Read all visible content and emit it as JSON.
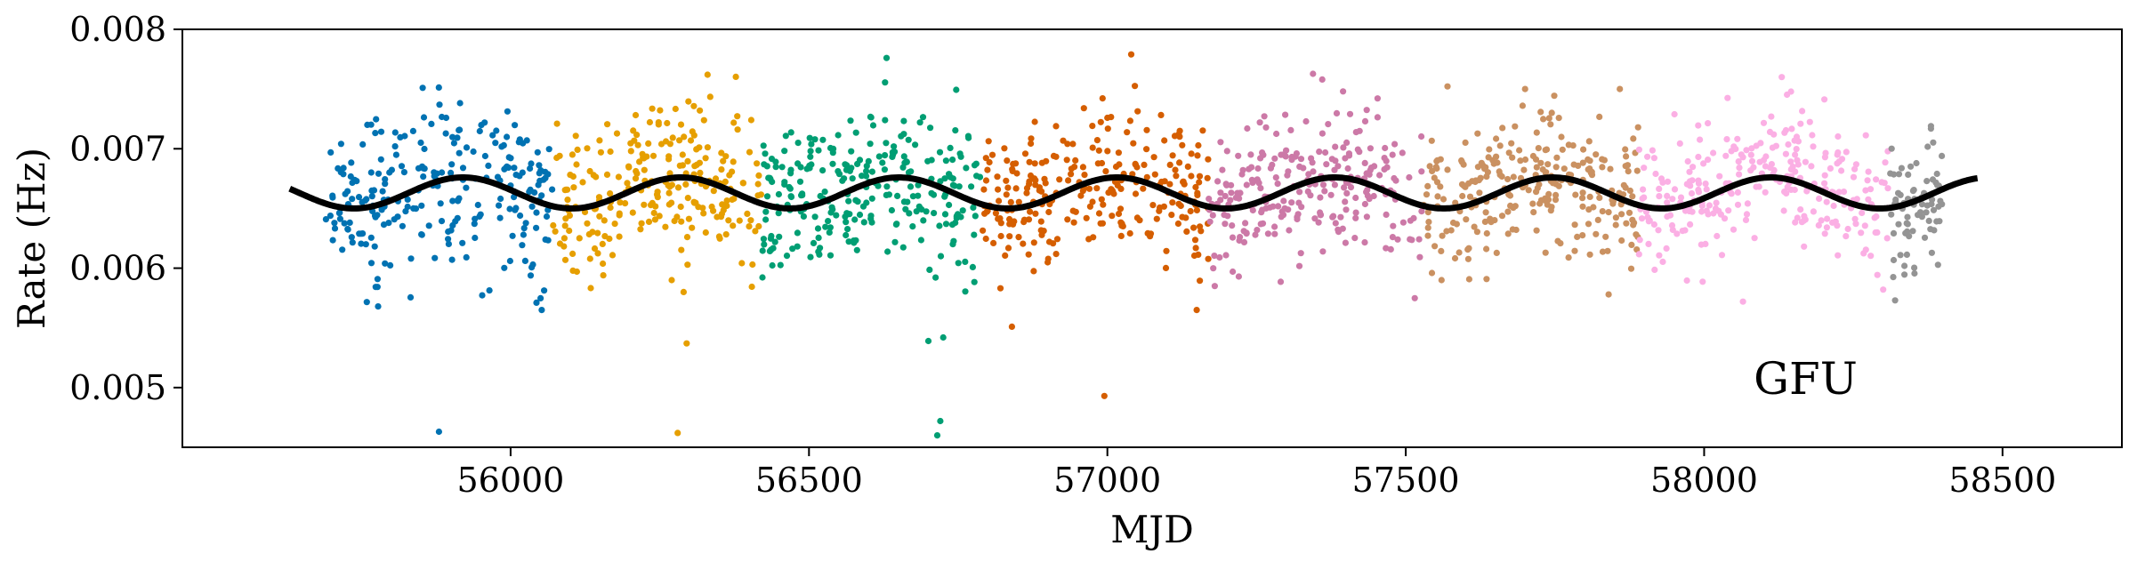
{
  "chart_data": {
    "type": "scatter",
    "xlabel": "MJD",
    "ylabel": "Rate (Hz)",
    "annotation": "GFU",
    "xlim": [
      55450,
      58700
    ],
    "ylim": [
      0.0045,
      0.008
    ],
    "xticks": [
      56000,
      56500,
      57000,
      57500,
      58000,
      58500
    ],
    "xtick_labels": [
      "56000",
      "56500",
      "57000",
      "57500",
      "58000",
      "58500"
    ],
    "yticks": [
      0.005,
      0.006,
      0.007,
      0.008
    ],
    "ytick_labels": [
      "0.005",
      "0.006",
      "0.007",
      "0.008"
    ],
    "grid": false,
    "legend": "none",
    "series": [
      {
        "color": "#0072b2",
        "x_range": [
          55690,
          56070
        ],
        "y_mean": 0.00663,
        "y_std": 0.00033,
        "n": 250,
        "x": [
          55880,
          56020,
          55760
        ],
        "y": [
          0.00463,
          0.0068,
          0.0072
        ]
      },
      {
        "color": "#e69f00",
        "x_range": [
          56070,
          56420
        ],
        "y_mean": 0.00665,
        "y_std": 0.0003,
        "n": 240,
        "x": [
          56280,
          56290,
          56295,
          56270,
          56330
        ],
        "y": [
          0.00462,
          0.0058,
          0.00537,
          0.0059,
          0.00762
        ]
      },
      {
        "color": "#009e73",
        "x_range": [
          56420,
          56790
        ],
        "y_mean": 0.00662,
        "y_std": 0.00033,
        "n": 260,
        "x": [
          56715,
          56720,
          56700,
          56725,
          56630
        ],
        "y": [
          0.0046,
          0.00472,
          0.00539,
          0.00542,
          0.00776
        ]
      },
      {
        "color": "#d55e00",
        "x_range": [
          56790,
          57170
        ],
        "y_mean": 0.00665,
        "y_std": 0.0003,
        "n": 260,
        "x": [
          56995,
          56840,
          57040
        ],
        "y": [
          0.00493,
          0.00551,
          0.00779
        ]
      },
      {
        "color": "#cc79a7",
        "x_range": [
          57170,
          57530
        ],
        "y_mean": 0.00668,
        "y_std": 0.0003,
        "n": 250,
        "x": [
          57180,
          57360,
          57395
        ],
        "y": [
          0.00585,
          0.00758,
          0.00748
        ]
      },
      {
        "color": "#ca9161",
        "x_range": [
          57530,
          57890
        ],
        "y_mean": 0.00666,
        "y_std": 0.0003,
        "n": 260,
        "x": [
          57700,
          57840,
          57560
        ],
        "y": [
          0.0075,
          0.00578,
          0.0059
        ]
      },
      {
        "color": "#fbafe4",
        "x_range": [
          57890,
          58310
        ],
        "y_mean": 0.00668,
        "y_std": 0.0003,
        "n": 270,
        "x": [
          58130,
          58065,
          58300
        ],
        "y": [
          0.0076,
          0.00572,
          0.00582
        ]
      },
      {
        "color": "#949494",
        "x_range": [
          58310,
          58400
        ],
        "y_mean": 0.00655,
        "y_std": 0.0003,
        "n": 70,
        "x": [
          58320,
          58380
        ],
        "y": [
          0.00573,
          0.00719
        ]
      }
    ],
    "model_curve": {
      "color": "#000000",
      "x_range": [
        55630,
        58460
      ],
      "mean": 0.00663,
      "amplitude": 0.00013,
      "period_days": 365.25,
      "peak_mjd": 55920
    }
  }
}
